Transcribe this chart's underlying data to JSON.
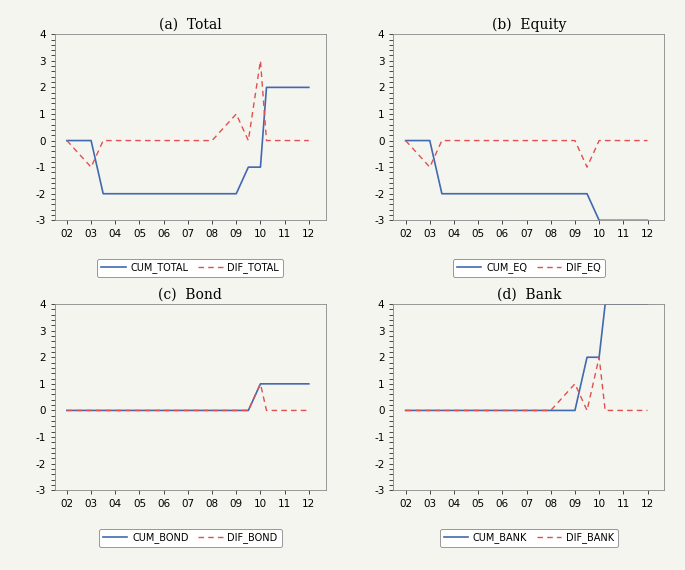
{
  "x": [
    2002,
    2003,
    2003.5,
    2004,
    2005,
    2006,
    2007,
    2008,
    2009,
    2009.5,
    2010,
    2010.25,
    2010.5,
    2011,
    2012
  ],
  "panels": [
    {
      "title": "(a)  Total",
      "legend_cum": "CUM_TOTAL",
      "legend_dif": "DIF_TOTAL",
      "cum": [
        0,
        0,
        -2,
        -2,
        -2,
        -2,
        -2,
        -2,
        -2,
        -1,
        -1,
        2,
        2,
        2,
        2
      ],
      "dif": [
        0,
        -1,
        0,
        0,
        0,
        0,
        0,
        0,
        1,
        0,
        3,
        0,
        0,
        0,
        0
      ]
    },
    {
      "title": "(b)  Equity",
      "legend_cum": "CUM_EQ",
      "legend_dif": "DIF_EQ",
      "cum": [
        0,
        0,
        -2,
        -2,
        -2,
        -2,
        -2,
        -2,
        -2,
        -2,
        -3,
        -3,
        -3,
        -3,
        -3
      ],
      "dif": [
        0,
        -1,
        0,
        0,
        0,
        0,
        0,
        0,
        0,
        -1,
        0,
        0,
        0,
        0,
        0
      ]
    },
    {
      "title": "(c)  Bond",
      "legend_cum": "CUM_BOND",
      "legend_dif": "DIF_BOND",
      "cum": [
        0,
        0,
        0,
        0,
        0,
        0,
        0,
        0,
        0,
        0,
        1,
        1,
        1,
        1,
        1
      ],
      "dif": [
        0,
        0,
        0,
        0,
        0,
        0,
        0,
        0,
        0,
        0,
        1,
        0,
        0,
        0,
        0
      ]
    },
    {
      "title": "(d)  Bank",
      "legend_cum": "CUM_BANK",
      "legend_dif": "DIF_BANK",
      "cum": [
        0,
        0,
        0,
        0,
        0,
        0,
        0,
        0,
        0,
        2,
        2,
        4,
        4,
        4,
        4
      ],
      "dif": [
        0,
        0,
        0,
        0,
        0,
        0,
        0,
        0,
        1,
        0,
        2,
        0,
        0,
        0,
        0
      ]
    }
  ],
  "xlim": [
    2001.5,
    2012.7
  ],
  "ylim": [
    -3,
    4
  ],
  "xticks": [
    2002,
    2003,
    2004,
    2005,
    2006,
    2007,
    2008,
    2009,
    2010,
    2011,
    2012
  ],
  "xticklabels": [
    "02",
    "03",
    "04",
    "05",
    "06",
    "07",
    "08",
    "09",
    "10",
    "11",
    "12"
  ],
  "yticks": [
    -3,
    -2,
    -1,
    0,
    1,
    2,
    3,
    4
  ],
  "cum_color": "#4169b0",
  "dif_color": "#e05050",
  "background_color": "#f5f5f0"
}
